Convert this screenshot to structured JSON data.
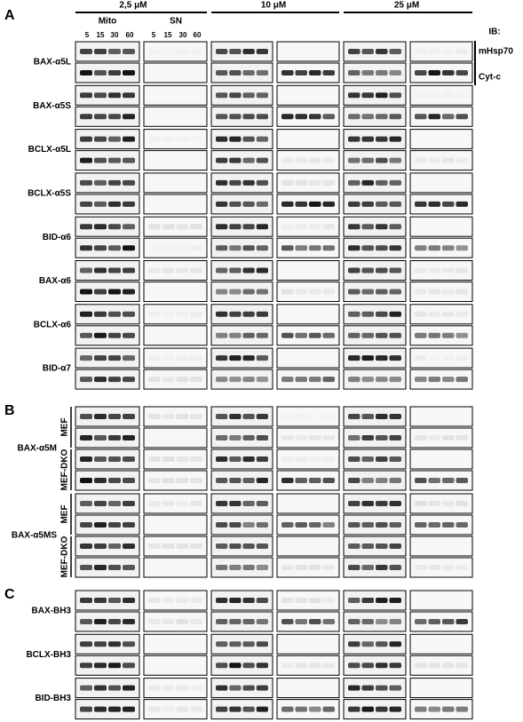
{
  "header": {
    "concentrations": [
      "2,5 μM",
      "10 μM",
      "25 μM"
    ],
    "fractions": [
      "Mito",
      "SN"
    ],
    "timepoints": [
      "5",
      "15",
      "30",
      "60"
    ],
    "ib_title": "IB:",
    "ib_markers": [
      "mHsp70",
      "Cyt-c"
    ]
  },
  "panels": [
    {
      "letter": "A",
      "groups": [
        {
          "label": "BAX-α5L"
        },
        {
          "label": "BAX-α5S"
        },
        {
          "label": "BCLX-α5L"
        },
        {
          "label": "BCLX-α5S"
        },
        {
          "label": "BID-α6"
        },
        {
          "label": "BAX-α6"
        },
        {
          "label": "BCLX-α6"
        },
        {
          "label": "BID-α7"
        }
      ]
    },
    {
      "letter": "B",
      "cells": [
        "MEF",
        "MEF-DKO"
      ],
      "groups": [
        {
          "label": "BAX-α5M"
        },
        {
          "label": "BAX-α5MS"
        }
      ]
    },
    {
      "letter": "C",
      "groups": [
        {
          "label": "BAX-BH3"
        },
        {
          "label": "BCLX-BH3"
        },
        {
          "label": "BID-BH3"
        }
      ]
    }
  ]
}
